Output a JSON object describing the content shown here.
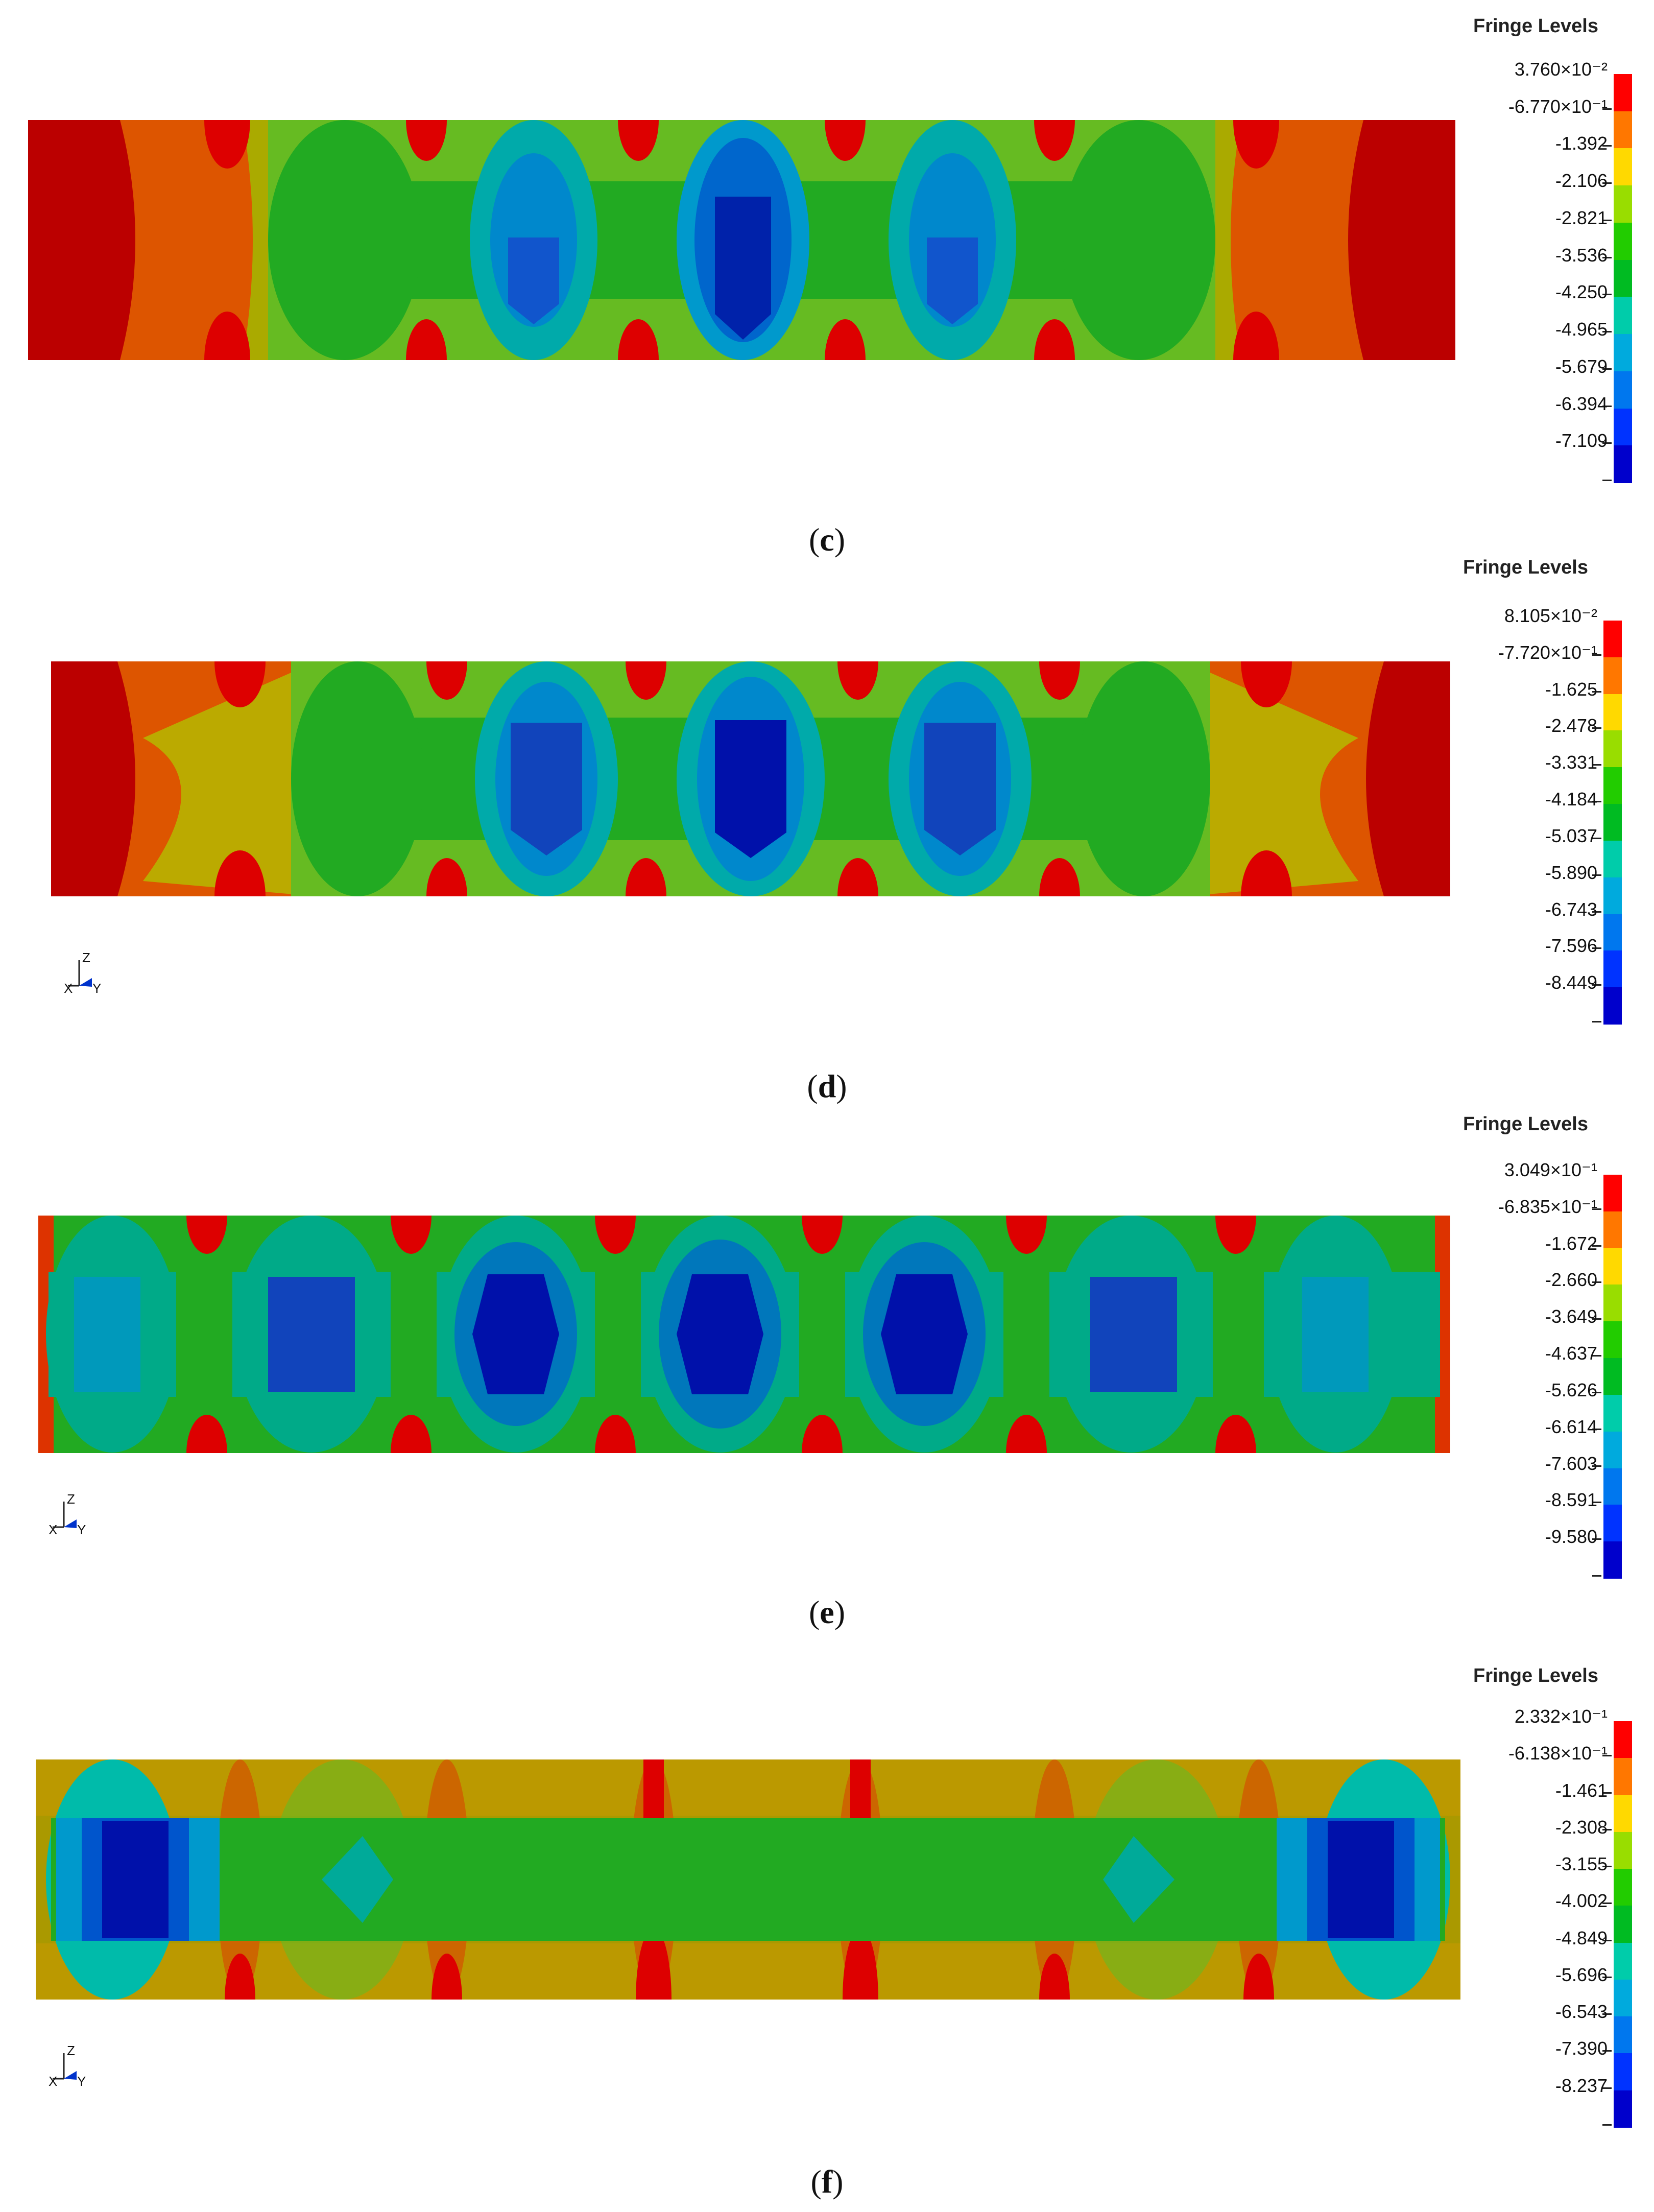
{
  "legend_title": "Fringe Levels",
  "colors": [
    "#ff0000",
    "#ff7700",
    "#ffd900",
    "#99dd00",
    "#22cc00",
    "#00bb22",
    "#00ccaa",
    "#00aadd",
    "#0077ee",
    "#0033ff",
    "#0000cc"
  ],
  "panels": [
    {
      "id": "c",
      "caption_open": "(",
      "caption_letter": "c",
      "caption_close": ")",
      "show_triad": false,
      "levels": [
        "3.760×10⁻²",
        "-6.770×10⁻¹",
        "-1.392",
        "-2.106",
        "-2.821",
        "-3.536",
        "-4.250",
        "-4.965",
        "-5.679",
        "-6.394",
        "-7.109"
      ]
    },
    {
      "id": "d",
      "caption_open": "(",
      "caption_letter": "d",
      "caption_close": ")",
      "show_triad": true,
      "levels": [
        "8.105×10⁻²",
        "-7.720×10⁻¹",
        "-1.625",
        "-2.478",
        "-3.331",
        "-4.184",
        "-5.037",
        "-5.890",
        "-6.743",
        "-7.596",
        "-8.449"
      ]
    },
    {
      "id": "e",
      "caption_open": "(",
      "caption_letter": "e",
      "caption_close": ")",
      "show_triad": true,
      "levels": [
        "3.049×10⁻¹",
        "-6.835×10⁻¹",
        "-1.672",
        "-2.660",
        "-3.649",
        "-4.637",
        "-5.626",
        "-6.614",
        "-7.603",
        "-8.591",
        "-9.580"
      ]
    },
    {
      "id": "f",
      "caption_open": "(",
      "caption_letter": "f",
      "caption_close": ")",
      "show_triad": true,
      "levels": [
        "2.332×10⁻¹",
        "-6.138×10⁻¹",
        "-1.461",
        "-2.308",
        "-3.155",
        "-4.002",
        "-4.849",
        "-5.696",
        "-6.543",
        "-7.390",
        "-8.237"
      ]
    }
  ],
  "triad": {
    "x_label": "X",
    "y_label": "Y",
    "z_label": "Z"
  }
}
